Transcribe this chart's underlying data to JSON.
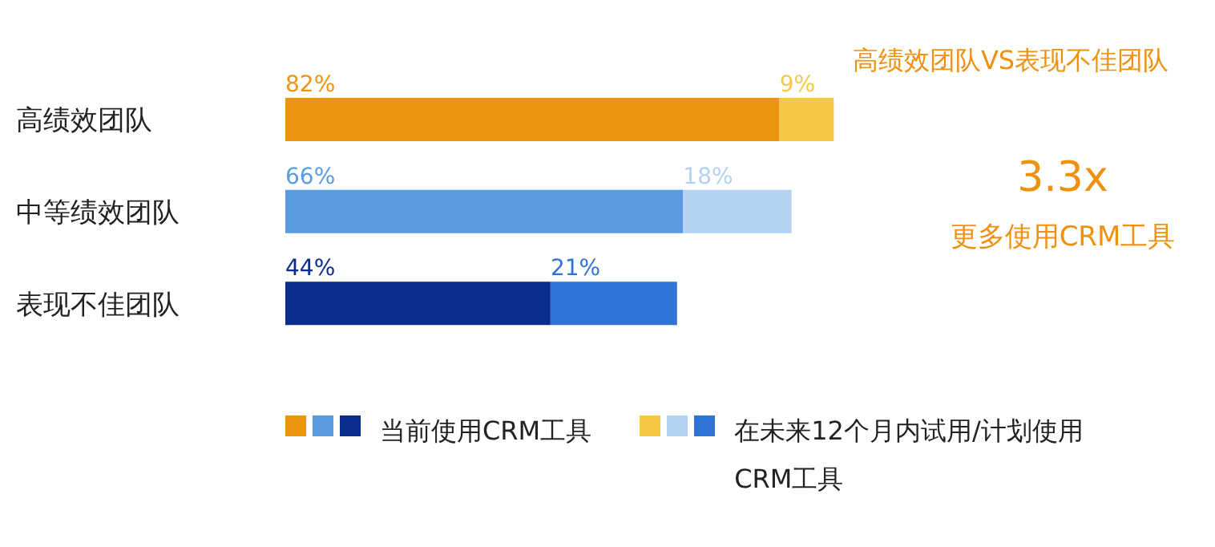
{
  "chart_data": {
    "type": "bar",
    "orientation": "horizontal",
    "stacked": true,
    "categories": [
      "高绩效团队",
      "中等绩效团队",
      "表现不佳团队"
    ],
    "series": [
      {
        "name": "当前使用CRM工具",
        "colors": [
          "#ee9413",
          "#5a9be0",
          "#0a2c8c"
        ],
        "values": [
          82,
          66,
          44
        ],
        "value_labels": [
          "82%",
          "66%",
          "44%"
        ]
      },
      {
        "name": "在未来12个月内试用/计划使用CRM工具",
        "colors": [
          "#f6c945",
          "#b3d1f0",
          "#2f74d4"
        ],
        "values": [
          9,
          18,
          21
        ],
        "value_labels": [
          "9%",
          "18%",
          "21%"
        ]
      }
    ],
    "tick_labels": "y",
    "legend": "bottom",
    "annotations": [
      "高绩效团队VS表现不佳团队",
      "3.3x",
      "更多使用CRM工具"
    ]
  }
}
